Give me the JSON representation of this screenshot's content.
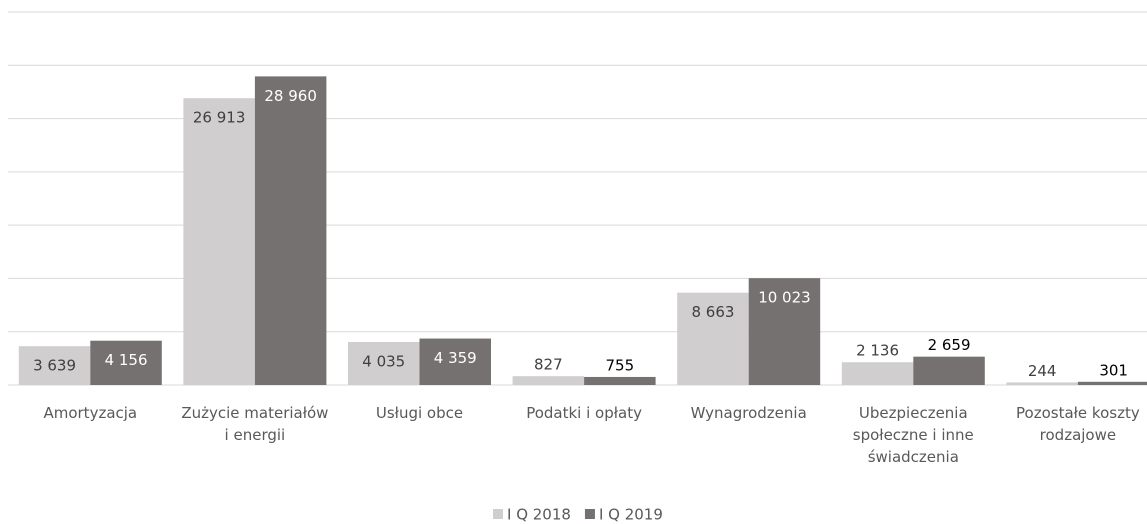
{
  "chart_data": {
    "type": "bar",
    "categories": [
      "Amortyzacja",
      "Zużycie materiałów i energii",
      "Usługi obce",
      "Podatki i opłaty",
      "Wynagrodzenia",
      "Ubezpieczenia społeczne i inne świadczenia",
      "Pozostałe koszty rodzajowe"
    ],
    "series": [
      {
        "name": "I Q 2018",
        "color": "#d0cece",
        "values": [
          3639,
          26913,
          4035,
          827,
          8663,
          2136,
          244
        ],
        "value_labels": [
          "3 639",
          "26 913",
          "4 035",
          "827",
          "8 663",
          "2 136",
          "244"
        ]
      },
      {
        "name": "I Q 2019",
        "color": "#767171",
        "values": [
          4156,
          28960,
          4359,
          755,
          10023,
          2659,
          301
        ],
        "value_labels": [
          "4 156",
          "28 960",
          "4 359",
          "755",
          "10 023",
          "2 659",
          "301"
        ]
      }
    ],
    "ylim": [
      0,
      35000
    ],
    "yticks": [
      0,
      5000,
      10000,
      15000,
      20000,
      25000,
      30000,
      35000
    ],
    "grid": true,
    "legend": "bottom"
  }
}
